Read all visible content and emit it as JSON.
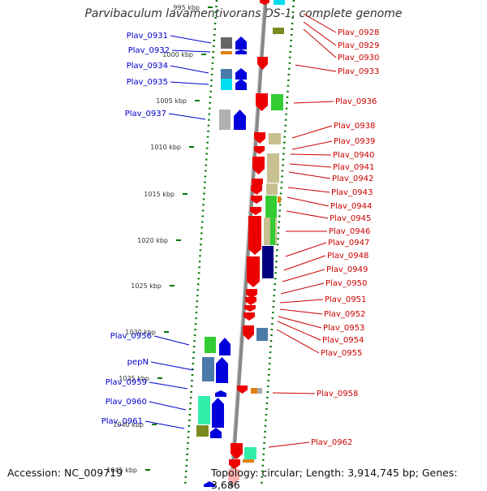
{
  "title": "Parvibaculum lavamentivorans DS-1, complete genome",
  "footer": {
    "accession": "Accession: NC_009719",
    "topology": "Topology: circular; Length: 3,914,745 bp; Genes: 3,686"
  },
  "colors": {
    "left_label": "#0000cc",
    "right_label": "#cc0000",
    "backbone": "#888888",
    "dots": "#007700"
  },
  "kbp_ticks": [
    "995 kbp",
    "1000 kbp",
    "1005 kbp",
    "1010 kbp",
    "1015 kbp",
    "1020 kbp",
    "1025 kbp",
    "1030 kbp",
    "1035 kbp",
    "1040 kbp",
    "1045 kbp"
  ],
  "left_genes": [
    "Plav_0931",
    "Plav_0932",
    "Plav_0934",
    "Plav_0935",
    "Plav_0937",
    "Plav_0956",
    "pepN",
    "Plav_0959",
    "Plav_0960",
    "Plav_0961"
  ],
  "right_genes": [
    "Plav_0928",
    "Plav_0929",
    "Plav_0930",
    "Plav_0933",
    "Plav_0936",
    "Plav_0938",
    "Plav_0939",
    "Plav_0940",
    "Plav_0941",
    "Plav_0942",
    "Plav_0943",
    "Plav_0944",
    "Plav_0945",
    "Plav_0946",
    "Plav_0947",
    "Plav_0948",
    "Plav_0949",
    "Plav_0950",
    "Plav_0951",
    "Plav_0952",
    "Plav_0953",
    "Plav_0954",
    "Plav_0955",
    "Plav_0958",
    "Plav_0962"
  ]
}
